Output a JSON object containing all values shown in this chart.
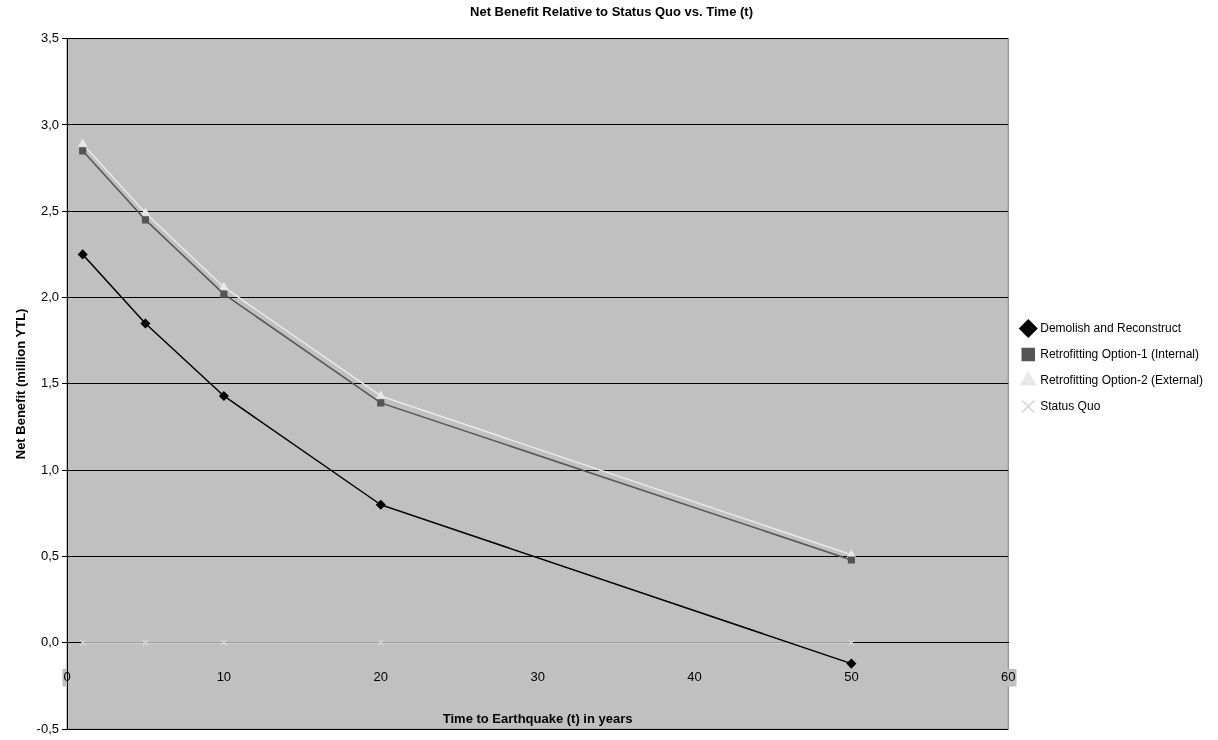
{
  "chart_data": {
    "type": "line",
    "title": "Net Benefit Relative to Status Quo vs. Time (t)",
    "xlabel": "Time to Earthquake (t) in years",
    "ylabel": "Net Benefit (million YTL)",
    "x": [
      1,
      5,
      10,
      20,
      50
    ],
    "series": [
      {
        "name": "Demolish and Reconstruct",
        "color": "#000000",
        "marker": "diamond",
        "values": [
          2.25,
          1.85,
          1.43,
          0.8,
          -0.12
        ]
      },
      {
        "name": "Retrofitting Option-1 (Internal)",
        "color": "#555555",
        "marker": "square",
        "values": [
          2.85,
          2.45,
          2.02,
          1.39,
          0.48
        ]
      },
      {
        "name": "Retrofitting Option-2 (External)",
        "color": "#e8e8e8",
        "marker": "triangle",
        "values": [
          2.89,
          2.49,
          2.06,
          1.43,
          0.51
        ]
      },
      {
        "name": "Status Quo",
        "color": "#d4d4d4",
        "marker": "cross",
        "values": [
          0,
          0,
          0,
          0,
          0
        ]
      }
    ],
    "xlim": [
      0,
      60
    ],
    "xticks": [
      0,
      10,
      20,
      30,
      40,
      50,
      60
    ],
    "ylim": [
      -0.5,
      3.5
    ],
    "yticks": [
      {
        "value": -0.5,
        "label": "-0,5"
      },
      {
        "value": 0,
        "label": "0,0"
      },
      {
        "value": 0.5,
        "label": "0,5"
      },
      {
        "value": 1,
        "label": "1,0"
      },
      {
        "value": 1.5,
        "label": "1,5"
      },
      {
        "value": 2,
        "label": "2,0"
      },
      {
        "value": 2.5,
        "label": "2,5"
      },
      {
        "value": 3,
        "label": "3,0"
      },
      {
        "value": 3.5,
        "label": "3,5"
      }
    ],
    "grid": "y",
    "legend": "right"
  }
}
